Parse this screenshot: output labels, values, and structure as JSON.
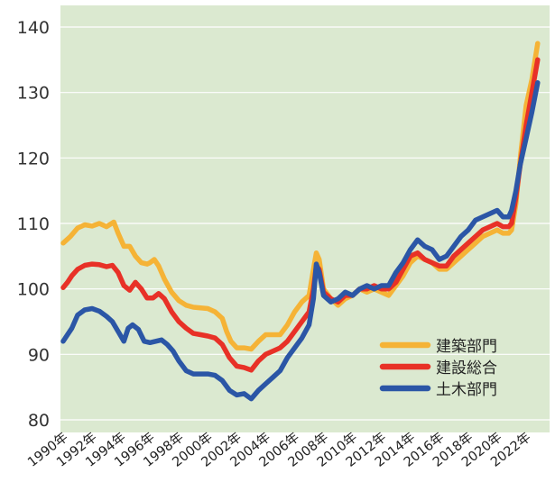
{
  "chart_data": {
    "type": "line",
    "title": "",
    "xlabel": "",
    "ylabel": "",
    "ylim": [
      80,
      140
    ],
    "xlim": [
      1990,
      2023.5
    ],
    "y_ticks": [
      80,
      90,
      100,
      110,
      120,
      130,
      140
    ],
    "x_ticks": [
      {
        "value": 1990,
        "label": "1990年"
      },
      {
        "value": 1992,
        "label": "1992年"
      },
      {
        "value": 1994,
        "label": "1994年"
      },
      {
        "value": 1996,
        "label": "1996年"
      },
      {
        "value": 1998,
        "label": "1998年"
      },
      {
        "value": 2000,
        "label": "2000年"
      },
      {
        "value": 2002,
        "label": "2002年"
      },
      {
        "value": 2004,
        "label": "2004年"
      },
      {
        "value": 2006,
        "label": "2006年"
      },
      {
        "value": 2008,
        "label": "2008年"
      },
      {
        "value": 2010,
        "label": "2010年"
      },
      {
        "value": 2012,
        "label": "2012年"
      },
      {
        "value": 2014,
        "label": "2014年"
      },
      {
        "value": 2016,
        "label": "2016年"
      },
      {
        "value": 2018,
        "label": "2018年"
      },
      {
        "value": 2020,
        "label": "2020年"
      },
      {
        "value": 2022,
        "label": "2022年"
      }
    ],
    "grid": "horizontal",
    "background": "#dbe9d0",
    "gridColor": "#ffffff",
    "legend": "bottom-right",
    "series": [
      {
        "name": "建築部門",
        "color": "#f5b336",
        "points": [
          [
            1990.0,
            107.0
          ],
          [
            1990.5,
            108.0
          ],
          [
            1991.0,
            109.3
          ],
          [
            1991.5,
            109.8
          ],
          [
            1992.0,
            109.6
          ],
          [
            1992.5,
            110.0
          ],
          [
            1993.0,
            109.5
          ],
          [
            1993.5,
            110.2
          ],
          [
            1993.8,
            108.5
          ],
          [
            1994.2,
            106.5
          ],
          [
            1994.6,
            106.5
          ],
          [
            1995.0,
            105.0
          ],
          [
            1995.4,
            104.0
          ],
          [
            1995.8,
            103.8
          ],
          [
            1996.0,
            104.0
          ],
          [
            1996.3,
            104.5
          ],
          [
            1996.6,
            103.5
          ],
          [
            1997.0,
            101.5
          ],
          [
            1997.5,
            99.5
          ],
          [
            1998.0,
            98.2
          ],
          [
            1998.5,
            97.5
          ],
          [
            1999.0,
            97.2
          ],
          [
            2000.0,
            97.0
          ],
          [
            2000.5,
            96.5
          ],
          [
            2001.0,
            95.5
          ],
          [
            2001.3,
            93.5
          ],
          [
            2001.6,
            92.0
          ],
          [
            2002.0,
            91.0
          ],
          [
            2002.5,
            91.0
          ],
          [
            2003.0,
            90.8
          ],
          [
            2003.5,
            92.0
          ],
          [
            2004.0,
            93.0
          ],
          [
            2004.5,
            93.0
          ],
          [
            2005.0,
            93.0
          ],
          [
            2005.5,
            94.5
          ],
          [
            2006.0,
            96.5
          ],
          [
            2006.5,
            98.0
          ],
          [
            2007.0,
            99.0
          ],
          [
            2007.3,
            103.0
          ],
          [
            2007.5,
            105.5
          ],
          [
            2007.7,
            104.5
          ],
          [
            2008.0,
            100.0
          ],
          [
            2008.5,
            98.5
          ],
          [
            2009.0,
            97.5
          ],
          [
            2009.5,
            98.5
          ],
          [
            2010.0,
            99.0
          ],
          [
            2010.5,
            100.0
          ],
          [
            2011.0,
            99.5
          ],
          [
            2011.5,
            100.0
          ],
          [
            2012.0,
            99.5
          ],
          [
            2012.5,
            99.0
          ],
          [
            2013.0,
            100.5
          ],
          [
            2013.5,
            102.0
          ],
          [
            2014.0,
            104.0
          ],
          [
            2014.5,
            105.0
          ],
          [
            2015.0,
            104.5
          ],
          [
            2015.5,
            104.0
          ],
          [
            2016.0,
            103.0
          ],
          [
            2016.5,
            103.0
          ],
          [
            2017.0,
            104.0
          ],
          [
            2017.5,
            105.0
          ],
          [
            2018.0,
            106.0
          ],
          [
            2018.5,
            107.0
          ],
          [
            2019.0,
            108.0
          ],
          [
            2019.5,
            108.5
          ],
          [
            2020.0,
            109.0
          ],
          [
            2020.4,
            108.5
          ],
          [
            2020.8,
            108.5
          ],
          [
            2021.0,
            109.0
          ],
          [
            2021.3,
            113.0
          ],
          [
            2021.6,
            120.0
          ],
          [
            2022.0,
            128.0
          ],
          [
            2022.4,
            132.0
          ],
          [
            2022.8,
            137.5
          ]
        ]
      },
      {
        "name": "建設総合",
        "color": "#e83127",
        "points": [
          [
            1990.0,
            100.2
          ],
          [
            1990.3,
            101.0
          ],
          [
            1990.6,
            102.0
          ],
          [
            1991.0,
            103.0
          ],
          [
            1991.5,
            103.6
          ],
          [
            1992.0,
            103.8
          ],
          [
            1992.5,
            103.7
          ],
          [
            1993.0,
            103.4
          ],
          [
            1993.4,
            103.6
          ],
          [
            1993.8,
            102.5
          ],
          [
            1994.2,
            100.5
          ],
          [
            1994.6,
            99.8
          ],
          [
            1995.0,
            101.0
          ],
          [
            1995.4,
            100.0
          ],
          [
            1995.8,
            98.6
          ],
          [
            1996.2,
            98.6
          ],
          [
            1996.6,
            99.3
          ],
          [
            1997.0,
            98.5
          ],
          [
            1997.5,
            96.5
          ],
          [
            1998.0,
            95.0
          ],
          [
            1998.5,
            94.0
          ],
          [
            1999.0,
            93.2
          ],
          [
            1999.5,
            93.0
          ],
          [
            2000.0,
            92.8
          ],
          [
            2000.5,
            92.5
          ],
          [
            2001.0,
            91.5
          ],
          [
            2001.5,
            89.5
          ],
          [
            2002.0,
            88.2
          ],
          [
            2002.5,
            88.0
          ],
          [
            2003.0,
            87.6
          ],
          [
            2003.5,
            89.0
          ],
          [
            2004.0,
            90.0
          ],
          [
            2004.5,
            90.5
          ],
          [
            2005.0,
            91.0
          ],
          [
            2005.5,
            92.0
          ],
          [
            2006.0,
            93.5
          ],
          [
            2006.5,
            95.0
          ],
          [
            2007.0,
            96.5
          ],
          [
            2007.3,
            100.0
          ],
          [
            2007.5,
            103.5
          ],
          [
            2007.7,
            103.0
          ],
          [
            2008.0,
            99.5
          ],
          [
            2008.5,
            98.5
          ],
          [
            2009.0,
            98.0
          ],
          [
            2009.5,
            99.0
          ],
          [
            2010.0,
            99.0
          ],
          [
            2010.5,
            100.0
          ],
          [
            2011.0,
            100.0
          ],
          [
            2011.5,
            100.5
          ],
          [
            2012.0,
            100.0
          ],
          [
            2012.5,
            100.0
          ],
          [
            2013.0,
            101.0
          ],
          [
            2013.5,
            103.0
          ],
          [
            2014.0,
            105.0
          ],
          [
            2014.5,
            105.5
          ],
          [
            2015.0,
            104.5
          ],
          [
            2015.5,
            104.0
          ],
          [
            2016.0,
            103.5
          ],
          [
            2016.5,
            103.5
          ],
          [
            2017.0,
            105.0
          ],
          [
            2017.5,
            106.0
          ],
          [
            2018.0,
            107.0
          ],
          [
            2018.5,
            108.0
          ],
          [
            2019.0,
            109.0
          ],
          [
            2019.5,
            109.5
          ],
          [
            2020.0,
            110.0
          ],
          [
            2020.4,
            109.5
          ],
          [
            2020.8,
            109.5
          ],
          [
            2021.0,
            110.0
          ],
          [
            2021.3,
            114.0
          ],
          [
            2021.6,
            119.0
          ],
          [
            2022.0,
            125.0
          ],
          [
            2022.4,
            130.0
          ],
          [
            2022.8,
            135.0
          ]
        ]
      },
      {
        "name": "土木部門",
        "color": "#2b56a6",
        "points": [
          [
            1990.0,
            92.0
          ],
          [
            1990.3,
            93.0
          ],
          [
            1990.6,
            94.0
          ],
          [
            1991.0,
            96.0
          ],
          [
            1991.5,
            96.8
          ],
          [
            1992.0,
            97.0
          ],
          [
            1992.5,
            96.6
          ],
          [
            1993.0,
            95.8
          ],
          [
            1993.4,
            95.0
          ],
          [
            1993.8,
            93.5
          ],
          [
            1994.2,
            92.0
          ],
          [
            1994.5,
            94.0
          ],
          [
            1994.8,
            94.5
          ],
          [
            1995.2,
            93.8
          ],
          [
            1995.6,
            92.0
          ],
          [
            1996.0,
            91.8
          ],
          [
            1996.4,
            92.0
          ],
          [
            1996.8,
            92.2
          ],
          [
            1997.2,
            91.5
          ],
          [
            1997.6,
            90.5
          ],
          [
            1998.0,
            89.0
          ],
          [
            1998.5,
            87.5
          ],
          [
            1999.0,
            87.0
          ],
          [
            1999.5,
            87.0
          ],
          [
            2000.0,
            87.0
          ],
          [
            2000.5,
            86.8
          ],
          [
            2001.0,
            86.0
          ],
          [
            2001.5,
            84.5
          ],
          [
            2002.0,
            83.8
          ],
          [
            2002.5,
            84.0
          ],
          [
            2003.0,
            83.2
          ],
          [
            2003.5,
            84.5
          ],
          [
            2004.0,
            85.5
          ],
          [
            2004.5,
            86.5
          ],
          [
            2005.0,
            87.5
          ],
          [
            2005.5,
            89.5
          ],
          [
            2006.0,
            91.0
          ],
          [
            2006.5,
            92.5
          ],
          [
            2007.0,
            94.5
          ],
          [
            2007.3,
            98.5
          ],
          [
            2007.5,
            103.8
          ],
          [
            2007.7,
            102.5
          ],
          [
            2008.0,
            99.0
          ],
          [
            2008.5,
            98.0
          ],
          [
            2009.0,
            98.5
          ],
          [
            2009.5,
            99.5
          ],
          [
            2010.0,
            99.0
          ],
          [
            2010.5,
            100.0
          ],
          [
            2011.0,
            100.5
          ],
          [
            2011.5,
            100.0
          ],
          [
            2012.0,
            100.5
          ],
          [
            2012.5,
            100.5
          ],
          [
            2013.0,
            102.5
          ],
          [
            2013.5,
            104.0
          ],
          [
            2014.0,
            106.0
          ],
          [
            2014.5,
            107.5
          ],
          [
            2015.0,
            106.5
          ],
          [
            2015.5,
            106.0
          ],
          [
            2016.0,
            104.5
          ],
          [
            2016.5,
            105.0
          ],
          [
            2017.0,
            106.5
          ],
          [
            2017.5,
            108.0
          ],
          [
            2018.0,
            109.0
          ],
          [
            2018.5,
            110.5
          ],
          [
            2019.0,
            111.0
          ],
          [
            2019.5,
            111.5
          ],
          [
            2020.0,
            112.0
          ],
          [
            2020.4,
            111.0
          ],
          [
            2020.8,
            111.0
          ],
          [
            2021.0,
            112.0
          ],
          [
            2021.3,
            115.0
          ],
          [
            2021.6,
            119.0
          ],
          [
            2022.0,
            123.0
          ],
          [
            2022.4,
            127.0
          ],
          [
            2022.8,
            131.5
          ]
        ]
      }
    ]
  }
}
